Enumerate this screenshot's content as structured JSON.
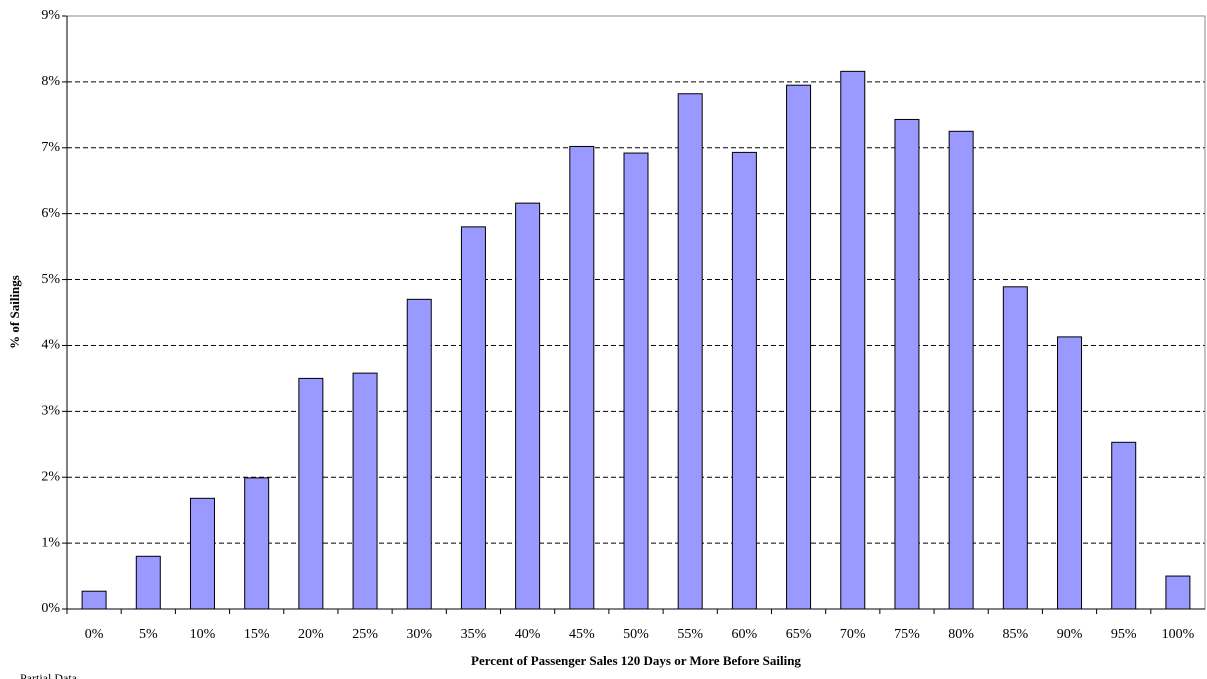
{
  "chart_data": {
    "type": "bar",
    "x_label": "Percent of Passenger Sales 120 Days or More Before Sailing",
    "y_label": "% of Sailings",
    "note": "Partial Data",
    "categories": [
      "0%",
      "5%",
      "10%",
      "15%",
      "20%",
      "25%",
      "30%",
      "35%",
      "40%",
      "45%",
      "50%",
      "55%",
      "60%",
      "65%",
      "70%",
      "75%",
      "80%",
      "85%",
      "90%",
      "95%",
      "100%"
    ],
    "values": [
      0.27,
      0.8,
      1.68,
      1.99,
      3.5,
      3.58,
      4.7,
      5.8,
      6.16,
      7.02,
      6.92,
      7.82,
      6.93,
      7.95,
      8.16,
      7.43,
      7.25,
      4.89,
      4.13,
      2.53,
      0.5
    ],
    "color": "#9999ff",
    "ylim": [
      0,
      9
    ],
    "yticks": [
      {
        "value": 0,
        "label": "0%"
      },
      {
        "value": 1,
        "label": "1%"
      },
      {
        "value": 2,
        "label": "2%"
      },
      {
        "value": 3,
        "label": "3%"
      },
      {
        "value": 4,
        "label": "4%"
      },
      {
        "value": 5,
        "label": "5%"
      },
      {
        "value": 6,
        "label": "6%"
      },
      {
        "value": 7,
        "label": "7%"
      },
      {
        "value": 8,
        "label": "8%"
      },
      {
        "value": 9,
        "label": "9%"
      }
    ],
    "grid": true
  }
}
